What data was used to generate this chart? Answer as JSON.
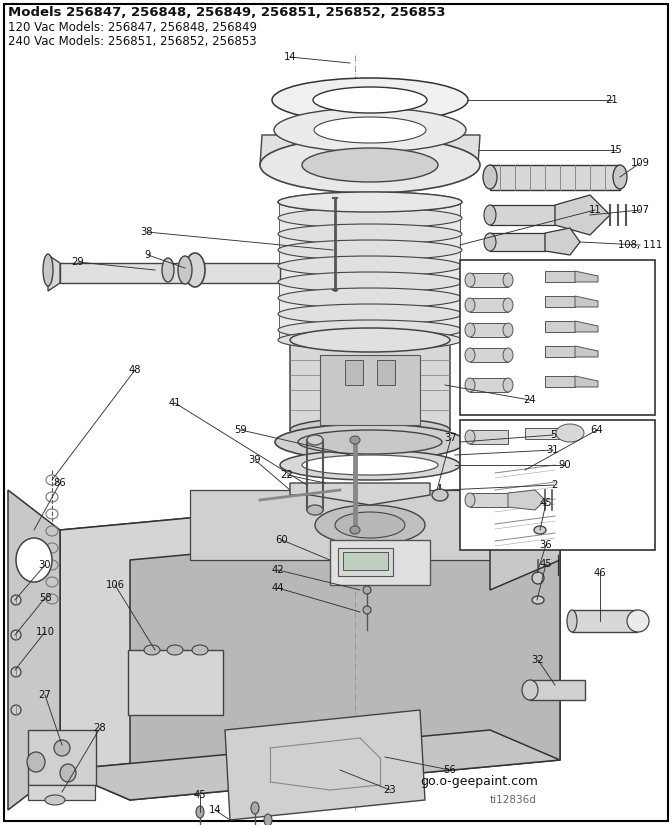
{
  "title_line1": "Models 256847, 256848, 256849, 256851, 256852, 256853",
  "title_line2": "120 Vac Models: 256847, 256848, 256849",
  "title_line3": "240 Vac Models: 256851, 256852, 256853",
  "footer_url": "go.o-geepaint.com",
  "footer_code": "ti12836d",
  "bg_color": "#ffffff",
  "fig_width": 6.72,
  "fig_height": 8.25,
  "fig_dpi": 100
}
